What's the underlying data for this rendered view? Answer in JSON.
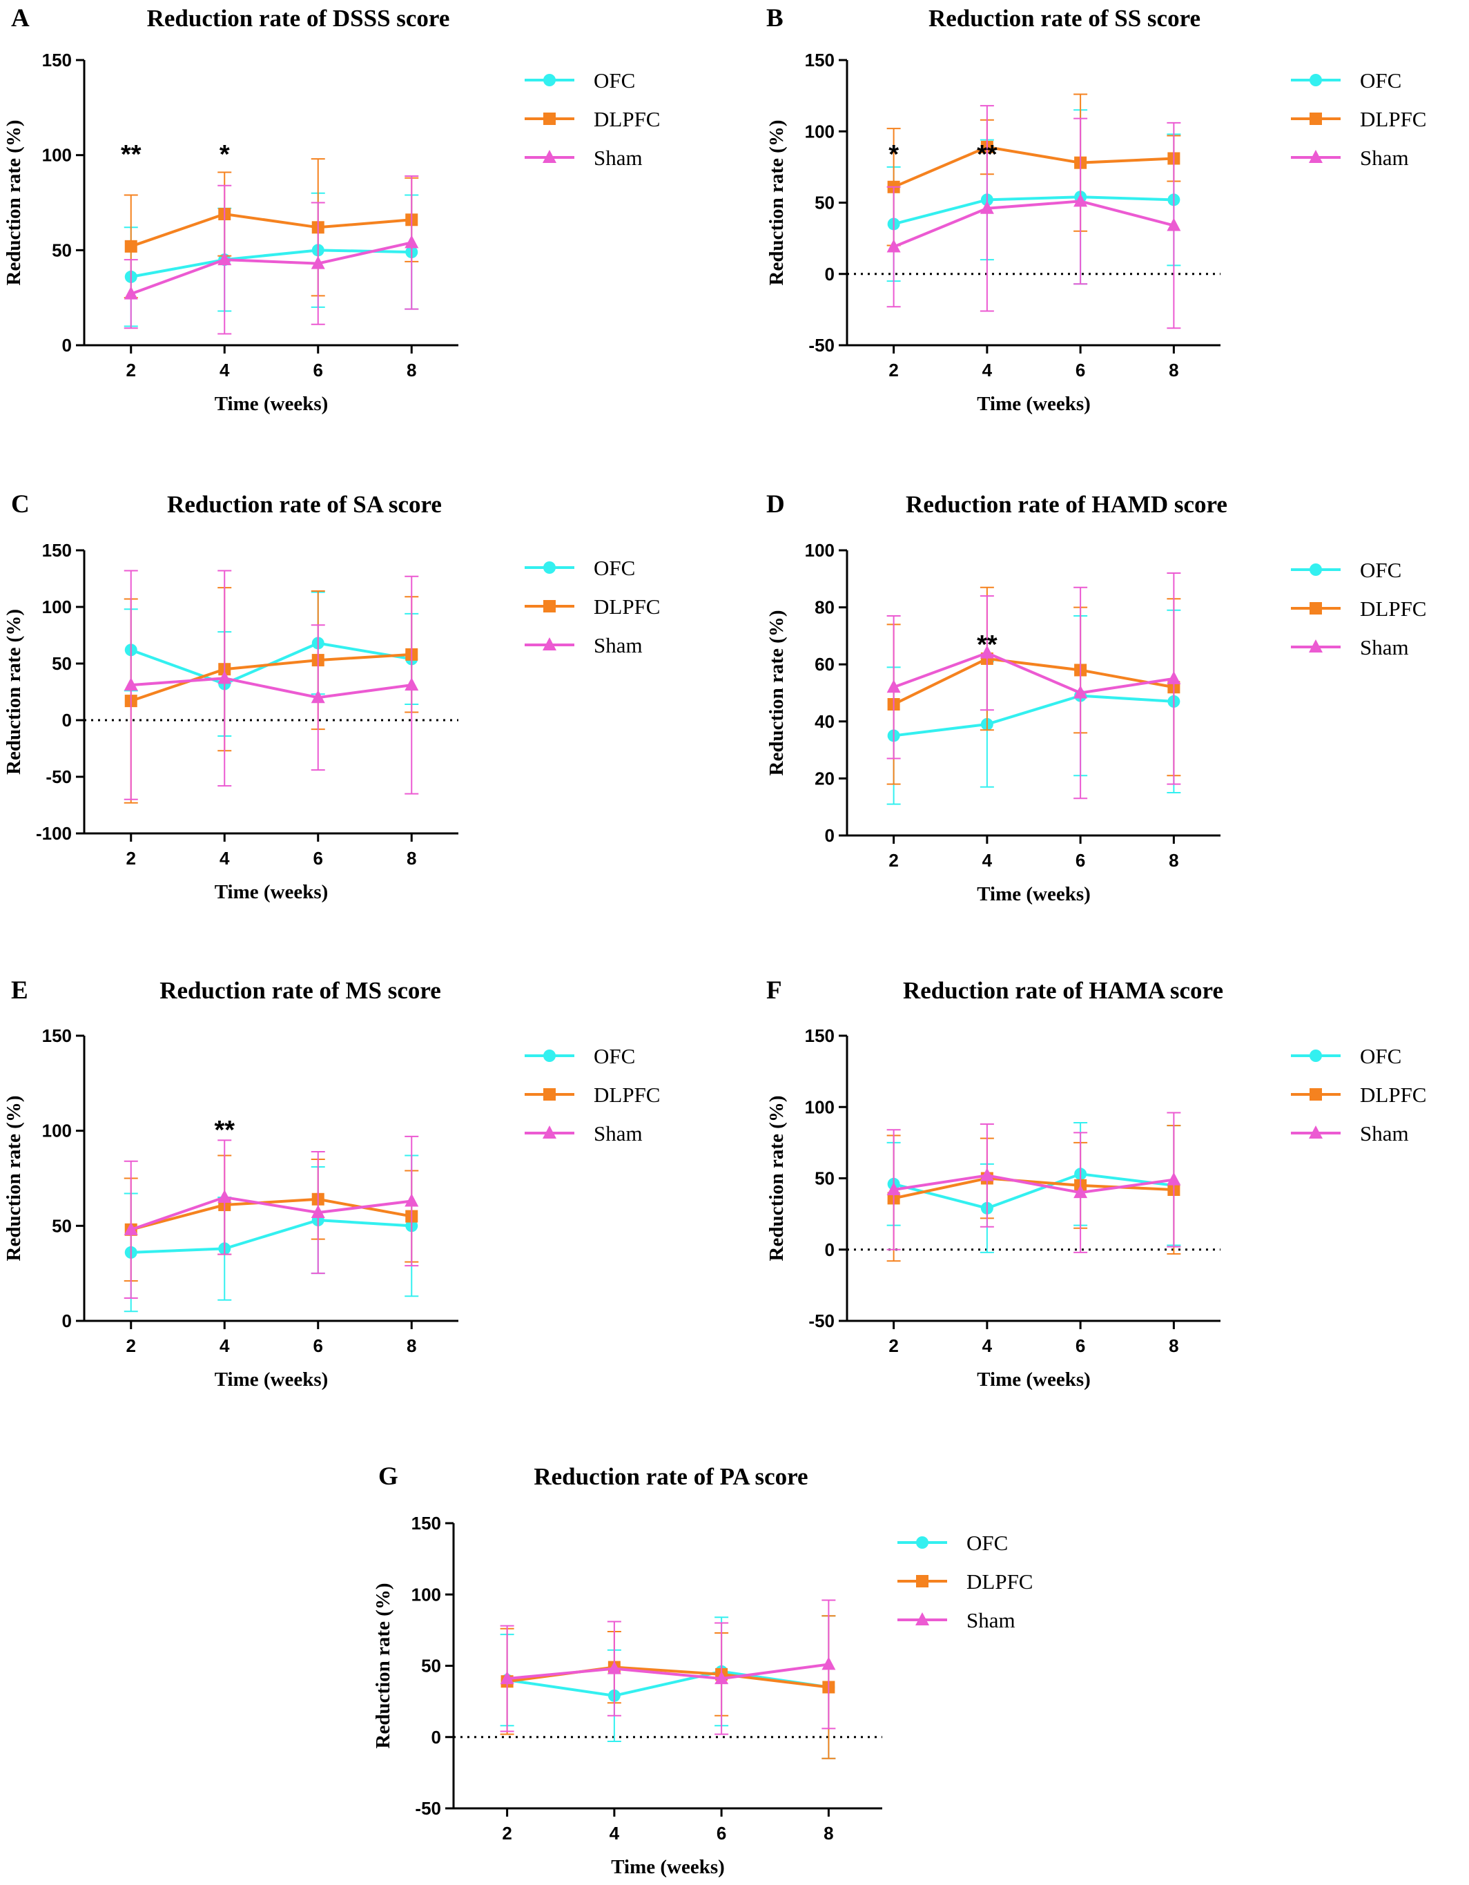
{
  "figure": {
    "legend": [
      "OFC",
      "DLPFC",
      "Sham"
    ],
    "colors": {
      "OFC": "#33F0F0",
      "DLPFC": "#F5821F",
      "Sham": "#EC5AD2"
    },
    "markers": {
      "OFC": "circle",
      "DLPFC": "square",
      "Sham": "triangle"
    }
  },
  "chart_data": [
    {
      "panel": "A",
      "type": "line",
      "title": "Reduction rate of DSSS score",
      "xlabel": "Time (weeks)",
      "ylabel": "Reduction rate (%)",
      "x": [
        2,
        4,
        6,
        8
      ],
      "xlim": [
        1.0,
        9.0
      ],
      "ylim": [
        0,
        150
      ],
      "yticks": [
        0,
        50,
        100,
        150
      ],
      "zero_line": false,
      "significance": [
        {
          "x": 2,
          "label": "**"
        },
        {
          "x": 4,
          "label": "*"
        }
      ],
      "series": [
        {
          "name": "OFC",
          "values": [
            36,
            45,
            50,
            49
          ],
          "error": [
            26,
            27,
            30,
            30
          ]
        },
        {
          "name": "DLPFC",
          "values": [
            52,
            69,
            62,
            66
          ],
          "error": [
            27,
            22,
            36,
            22
          ]
        },
        {
          "name": "Sham",
          "values": [
            27,
            45,
            43,
            54
          ],
          "error": [
            18,
            39,
            32,
            35
          ]
        }
      ]
    },
    {
      "panel": "B",
      "type": "line",
      "title": "Reduction rate of SS score",
      "xlabel": "Time (weeks)",
      "ylabel": "Reduction rate (%)",
      "x": [
        2,
        4,
        6,
        8
      ],
      "xlim": [
        1.0,
        9.0
      ],
      "ylim": [
        -50,
        150
      ],
      "yticks": [
        -50,
        0,
        50,
        100,
        150
      ],
      "zero_line": true,
      "significance": [
        {
          "x": 2,
          "label": "*"
        },
        {
          "x": 4,
          "label": "**"
        }
      ],
      "series": [
        {
          "name": "OFC",
          "values": [
            35,
            52,
            54,
            52
          ],
          "error": [
            40,
            42,
            61,
            46
          ]
        },
        {
          "name": "DLPFC",
          "values": [
            61,
            89,
            78,
            81
          ],
          "error": [
            41,
            19,
            48,
            16
          ]
        },
        {
          "name": "Sham",
          "values": [
            19,
            46,
            51,
            34
          ],
          "error": [
            42,
            72,
            58,
            72
          ]
        }
      ]
    },
    {
      "panel": "C",
      "type": "line",
      "title": "Reduction rate of SA score",
      "xlabel": "Time (weeks)",
      "ylabel": "Reduction rate (%)",
      "x": [
        2,
        4,
        6,
        8
      ],
      "xlim": [
        1.0,
        9.0
      ],
      "ylim": [
        -100,
        150
      ],
      "yticks": [
        -100,
        -50,
        0,
        50,
        100,
        150
      ],
      "zero_line": true,
      "significance": [],
      "series": [
        {
          "name": "OFC",
          "values": [
            62,
            32,
            68,
            54
          ],
          "error": [
            36,
            46,
            45,
            40
          ]
        },
        {
          "name": "DLPFC",
          "values": [
            17,
            45,
            53,
            58
          ],
          "error": [
            90,
            72,
            61,
            51
          ]
        },
        {
          "name": "Sham",
          "values": [
            31,
            37,
            20,
            31
          ],
          "error": [
            101,
            95,
            64,
            96
          ]
        }
      ]
    },
    {
      "panel": "D",
      "type": "line",
      "title": "Reduction rate of HAMD score",
      "xlabel": "Time (weeks)",
      "ylabel": "Reduction rate (%)",
      "x": [
        2,
        4,
        6,
        8
      ],
      "xlim": [
        1.0,
        9.0
      ],
      "ylim": [
        0,
        100
      ],
      "yticks": [
        0,
        20,
        40,
        60,
        80,
        100
      ],
      "zero_line": false,
      "significance": [
        {
          "x": 4,
          "label": "**"
        }
      ],
      "series": [
        {
          "name": "OFC",
          "values": [
            35,
            39,
            49,
            47
          ],
          "error": [
            24,
            22,
            28,
            32
          ]
        },
        {
          "name": "DLPFC",
          "values": [
            46,
            62,
            58,
            52
          ],
          "error": [
            28,
            25,
            22,
            31
          ]
        },
        {
          "name": "Sham",
          "values": [
            52,
            64,
            50,
            55
          ],
          "error": [
            25,
            20,
            37,
            37
          ]
        }
      ]
    },
    {
      "panel": "E",
      "type": "line",
      "title": "Reduction rate of MS score",
      "xlabel": "Time (weeks)",
      "ylabel": "Reduction rate (%)",
      "x": [
        2,
        4,
        6,
        8
      ],
      "xlim": [
        1.0,
        9.0
      ],
      "ylim": [
        0,
        150
      ],
      "yticks": [
        0,
        50,
        100,
        150
      ],
      "zero_line": false,
      "significance": [
        {
          "x": 4,
          "label": "**"
        }
      ],
      "series": [
        {
          "name": "OFC",
          "values": [
            36,
            38,
            53,
            50
          ],
          "error": [
            31,
            27,
            28,
            37
          ]
        },
        {
          "name": "DLPFC",
          "values": [
            48,
            61,
            64,
            55
          ],
          "error": [
            27,
            26,
            21,
            24
          ]
        },
        {
          "name": "Sham",
          "values": [
            48,
            65,
            57,
            63
          ],
          "error": [
            36,
            30,
            32,
            34
          ]
        }
      ]
    },
    {
      "panel": "F",
      "type": "line",
      "title": "Reduction rate of HAMA score",
      "xlabel": "Time (weeks)",
      "ylabel": "Reduction rate (%)",
      "x": [
        2,
        4,
        6,
        8
      ],
      "xlim": [
        1.0,
        9.0
      ],
      "ylim": [
        -50,
        150
      ],
      "yticks": [
        -50,
        0,
        50,
        100,
        150
      ],
      "zero_line": true,
      "significance": [],
      "series": [
        {
          "name": "OFC",
          "values": [
            46,
            29,
            53,
            45
          ],
          "error": [
            29,
            31,
            36,
            42
          ]
        },
        {
          "name": "DLPFC",
          "values": [
            36,
            50,
            45,
            42
          ],
          "error": [
            44,
            28,
            30,
            45
          ]
        },
        {
          "name": "Sham",
          "values": [
            42,
            52,
            40,
            49
          ],
          "error": [
            42,
            36,
            42,
            47
          ]
        }
      ]
    },
    {
      "panel": "G",
      "type": "line",
      "title": "Reduction rate of PA score",
      "xlabel": "Time (weeks)",
      "ylabel": "Reduction rate (%)",
      "x": [
        2,
        4,
        6,
        8
      ],
      "xlim": [
        1.0,
        9.0
      ],
      "ylim": [
        -50,
        150
      ],
      "yticks": [
        -50,
        0,
        50,
        100,
        150
      ],
      "zero_line": true,
      "significance": [],
      "series": [
        {
          "name": "OFC",
          "values": [
            40,
            29,
            46,
            35
          ],
          "error": [
            32,
            32,
            38,
            50
          ]
        },
        {
          "name": "DLPFC",
          "values": [
            39,
            49,
            44,
            35
          ],
          "error": [
            37,
            25,
            29,
            50
          ]
        },
        {
          "name": "Sham",
          "values": [
            41,
            48,
            41,
            51
          ],
          "error": [
            37,
            33,
            39,
            45
          ]
        }
      ]
    }
  ]
}
